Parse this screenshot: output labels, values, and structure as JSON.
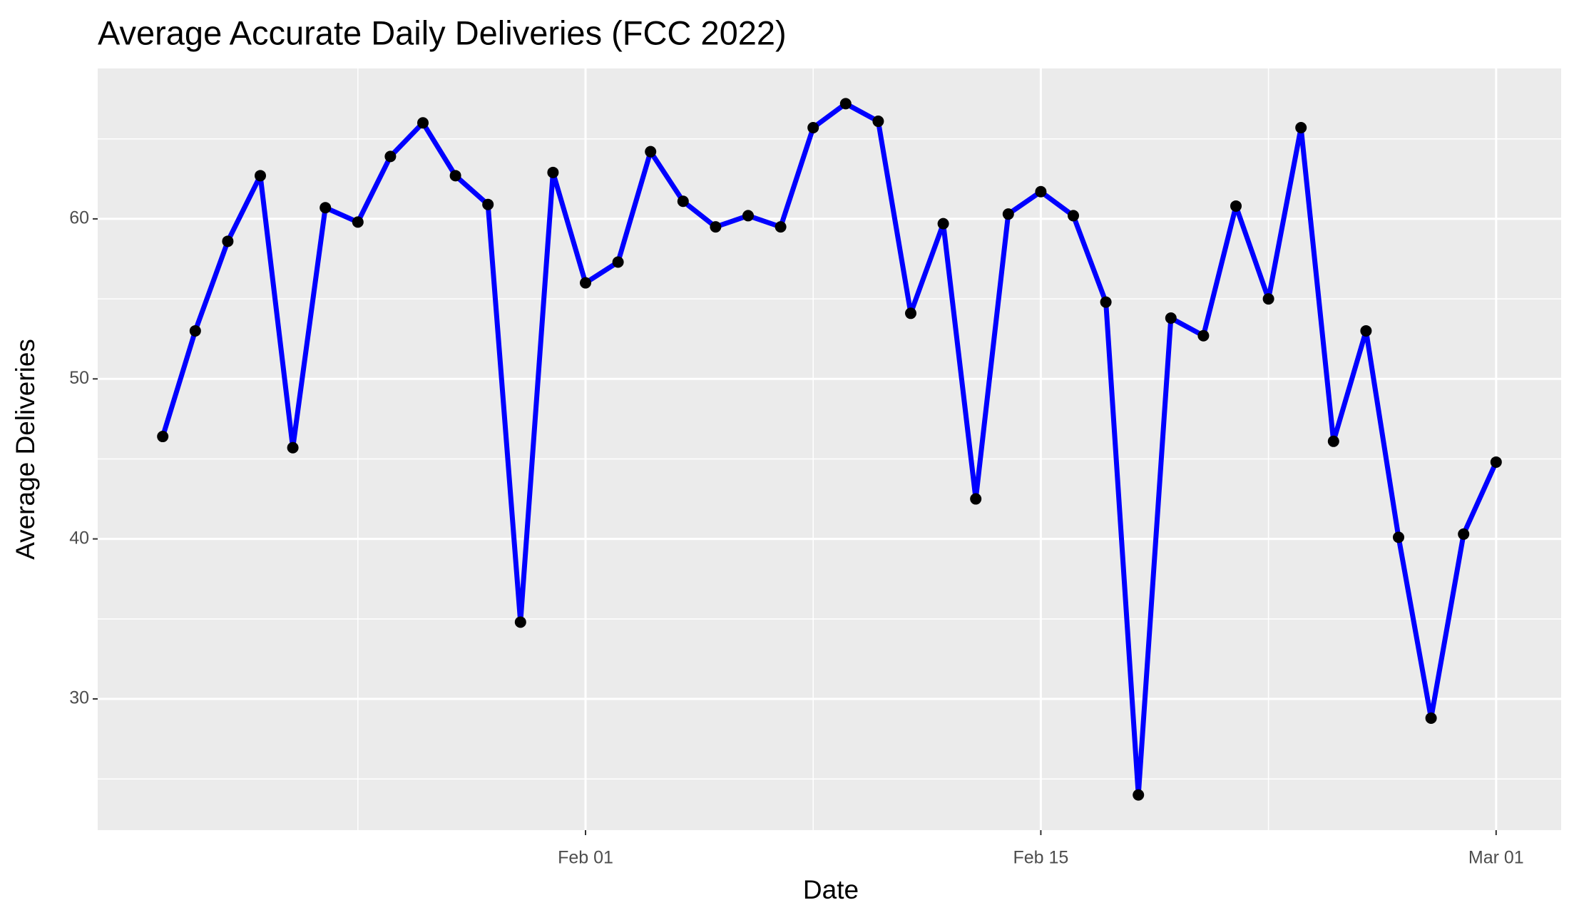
{
  "chart_data": {
    "type": "line",
    "title": "Average Accurate Daily Deliveries (FCC 2022)",
    "x_label": "Date",
    "y_label": "Average Deliveries",
    "x": [
      "Jan 19",
      "Jan 20",
      "Jan 21",
      "Jan 22",
      "Jan 23",
      "Jan 24",
      "Jan 25",
      "Jan 26",
      "Jan 27",
      "Jan 28",
      "Jan 29",
      "Jan 30",
      "Jan 31",
      "Feb 01",
      "Feb 02",
      "Feb 03",
      "Feb 04",
      "Feb 05",
      "Feb 06",
      "Feb 07",
      "Feb 08",
      "Feb 09",
      "Feb 10",
      "Feb 11",
      "Feb 12",
      "Feb 13",
      "Feb 14",
      "Feb 15",
      "Feb 16",
      "Feb 17",
      "Feb 18",
      "Feb 19",
      "Feb 20",
      "Feb 21",
      "Feb 22",
      "Feb 23",
      "Feb 24",
      "Feb 25",
      "Feb 26",
      "Feb 27",
      "Feb 28",
      "Mar 01"
    ],
    "series": [
      {
        "color": "#0000ff",
        "point_color": "#000000",
        "values": [
          46.4,
          53,
          58.6,
          62.7,
          45.7,
          60.7,
          59.8,
          63.9,
          66,
          62.7,
          60.9,
          34.8,
          62.9,
          56,
          57.3,
          64.2,
          61.1,
          59.5,
          60.2,
          59.5,
          65.7,
          67.2,
          66.1,
          54.1,
          59.7,
          42.5,
          60.3,
          61.7,
          60.2,
          54.8,
          24,
          53.8,
          52.7,
          60.8,
          55,
          65.7,
          46.1,
          53,
          40.1,
          28.8,
          40.3,
          44.8
        ]
      }
    ],
    "xlim": [
      "Jan 17",
      "Mar 03"
    ],
    "xticks": [
      "Feb 01",
      "Feb 15",
      "Mar 01"
    ],
    "ylim": [
      21.8,
      69.4
    ],
    "yticks": [
      30,
      40,
      50,
      60
    ],
    "grid": true
  }
}
